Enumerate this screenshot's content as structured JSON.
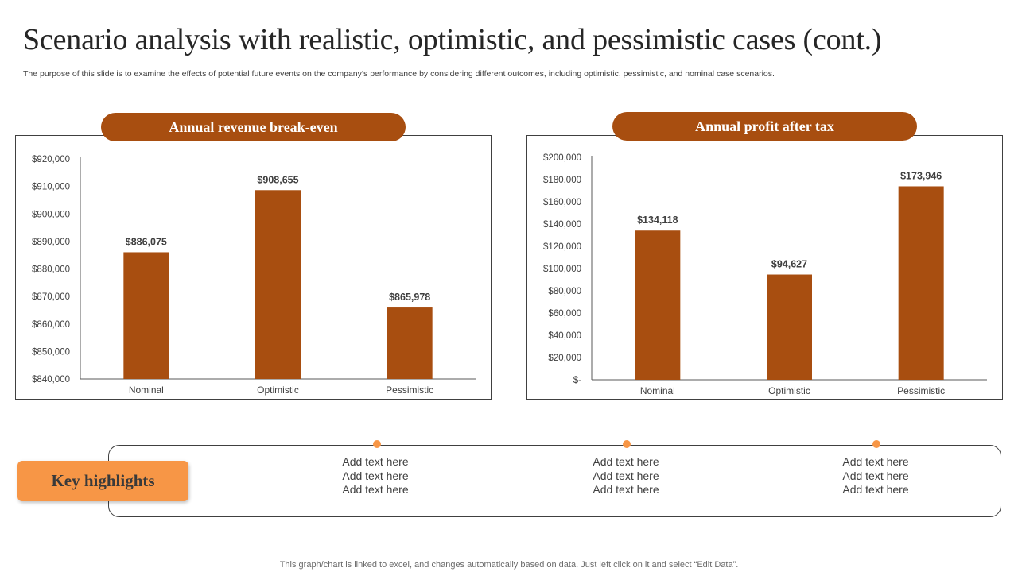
{
  "title": "Scenario analysis with realistic, optimistic, and pessimistic cases (cont.)",
  "subtitle": "The purpose of this slide is to examine the effects of potential future events on the company’s performance by considering different outcomes, including optimistic, pessimistic, and nominal case scenarios.",
  "chart_data": [
    {
      "type": "bar",
      "title": "Annual revenue break-even",
      "categories": [
        "Nominal",
        "Optimistic",
        "Pessimistic"
      ],
      "values": [
        886075,
        908655,
        865978
      ],
      "value_labels": [
        "$886,075",
        "$908,655",
        "$865,978"
      ],
      "ylim": [
        840000,
        920000
      ],
      "yticks": [
        840000,
        850000,
        860000,
        870000,
        880000,
        890000,
        900000,
        910000,
        920000
      ],
      "ytick_labels": [
        "$840,000",
        "$850,000",
        "$860,000",
        "$870,000",
        "$880,000",
        "$890,000",
        "$900,000",
        "$910,000",
        "$920,000"
      ],
      "xlabel": "",
      "ylabel": "",
      "bar_color": "#a84e10"
    },
    {
      "type": "bar",
      "title": "Annual profit after tax",
      "categories": [
        "Nominal",
        "Optimistic",
        "Pessimistic"
      ],
      "values": [
        134118,
        94627,
        173946
      ],
      "value_labels": [
        "$134,118",
        "$94,627",
        "$173,946"
      ],
      "ylim": [
        0,
        200000
      ],
      "yticks": [
        0,
        20000,
        40000,
        60000,
        80000,
        100000,
        120000,
        140000,
        160000,
        180000,
        200000
      ],
      "ytick_labels": [
        "$-",
        "$20,000",
        "$40,000",
        "$60,000",
        "$80,000",
        "$100,000",
        "$120,000",
        "$140,000",
        "$160,000",
        "$180,000",
        "$200,000"
      ],
      "xlabel": "",
      "ylabel": "",
      "bar_color": "#a84e10"
    }
  ],
  "highlights": {
    "label": "Key highlights",
    "columns": [
      [
        "Add text here",
        "Add text here",
        "Add text here"
      ],
      [
        "Add text here",
        "Add text here",
        "Add text here"
      ],
      [
        "Add text here",
        "Add text here",
        "Add text here"
      ]
    ]
  },
  "footer": "This graph/chart is linked to excel,  and changes automatically based on data. Just left click on it and select “Edit Data”.",
  "colors": {
    "accent": "#a84e10",
    "highlight": "#f79646"
  }
}
